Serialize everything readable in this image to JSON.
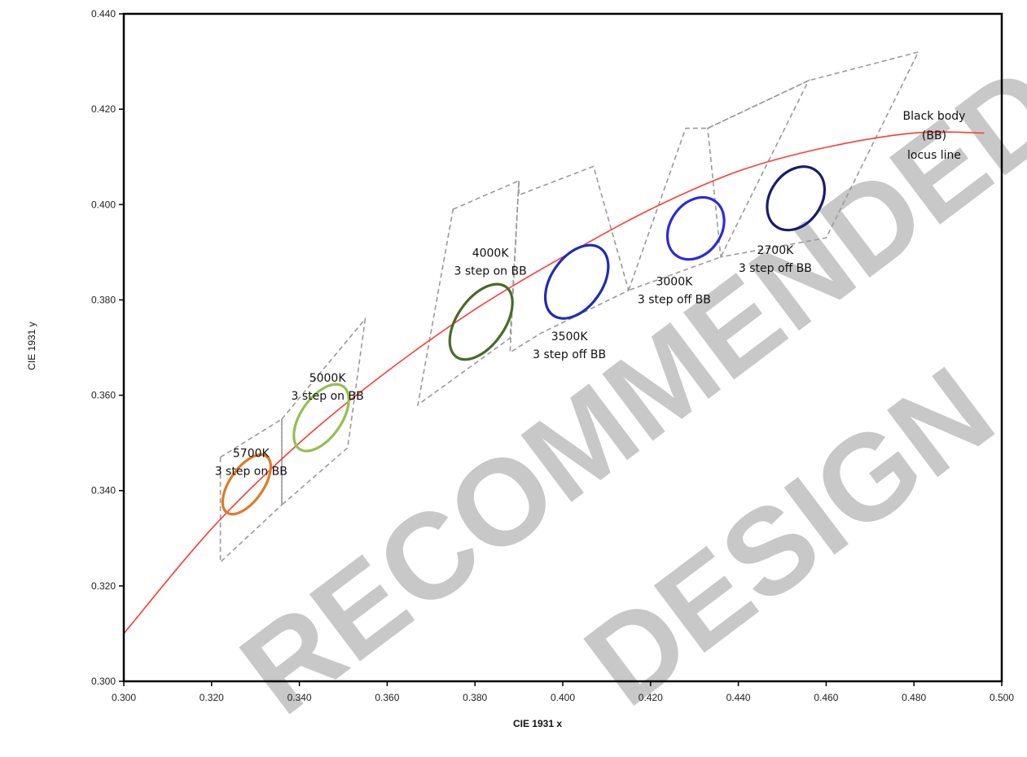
{
  "chart_data": {
    "type": "scatter",
    "title": "",
    "xlabel": "CIE 1931 x",
    "ylabel": "CIE 1931 y",
    "xlim": [
      0.3,
      0.5
    ],
    "ylim": [
      0.3,
      0.44
    ],
    "xticks": [
      "0.300",
      "0.320",
      "0.340",
      "0.360",
      "0.380",
      "0.400",
      "0.420",
      "0.440",
      "0.460",
      "0.480",
      "0.500"
    ],
    "yticks": [
      "0.300",
      "0.320",
      "0.340",
      "0.360",
      "0.380",
      "0.400",
      "0.420",
      "0.440"
    ],
    "grid": false,
    "locus": {
      "color": "#ff3b3b",
      "label": [
        "Black body",
        "(BB)",
        "locus line"
      ],
      "points": [
        [
          0.3,
          0.31
        ],
        [
          0.32,
          0.332
        ],
        [
          0.34,
          0.35
        ],
        [
          0.36,
          0.365
        ],
        [
          0.38,
          0.378
        ],
        [
          0.4,
          0.389
        ],
        [
          0.42,
          0.399
        ],
        [
          0.44,
          0.407
        ],
        [
          0.46,
          0.412
        ],
        [
          0.48,
          0.415
        ],
        [
          0.496,
          0.415
        ]
      ]
    },
    "quadrangles": [
      {
        "name": "5700K",
        "points": [
          [
            0.322,
            0.347
          ],
          [
            0.336,
            0.355
          ],
          [
            0.336,
            0.337
          ],
          [
            0.322,
            0.325
          ]
        ]
      },
      {
        "name": "5000K",
        "points": [
          [
            0.336,
            0.355
          ],
          [
            0.355,
            0.376
          ],
          [
            0.351,
            0.349
          ],
          [
            0.336,
            0.337
          ]
        ]
      },
      {
        "name": "4000K",
        "points": [
          [
            0.375,
            0.399
          ],
          [
            0.39,
            0.405
          ],
          [
            0.388,
            0.372
          ],
          [
            0.367,
            0.358
          ]
        ]
      },
      {
        "name": "3500K",
        "points": [
          [
            0.39,
            0.405
          ],
          [
            0.39,
            0.402
          ],
          [
            0.407,
            0.408
          ],
          [
            0.415,
            0.382
          ],
          [
            0.395,
            0.373
          ],
          [
            0.388,
            0.369
          ]
        ]
      },
      {
        "name": "3000K",
        "points": [
          [
            0.415,
            0.382
          ],
          [
            0.428,
            0.416
          ],
          [
            0.433,
            0.416
          ],
          [
            0.456,
            0.426
          ],
          [
            0.436,
            0.389
          ]
        ]
      },
      {
        "name": "2700K",
        "points": [
          [
            0.433,
            0.416
          ],
          [
            0.456,
            0.426
          ],
          [
            0.481,
            0.432
          ],
          [
            0.46,
            0.393
          ],
          [
            0.436,
            0.389
          ]
        ]
      }
    ],
    "ellipses": [
      {
        "name": "5700K",
        "color": "#e07a26",
        "center": [
          0.328,
          0.3413
        ],
        "rx": 0.0038,
        "ry": 0.0072,
        "label": [
          "5700K",
          "3 step on BB"
        ],
        "label_at": [
          0.329,
          0.347
        ]
      },
      {
        "name": "5000K",
        "color": "#92c050",
        "center": [
          0.345,
          0.3553
        ],
        "rx": 0.0046,
        "ry": 0.008,
        "label": [
          "5000K",
          "3 step on BB"
        ],
        "label_at": [
          0.3464,
          0.3628
        ]
      },
      {
        "name": "4000K",
        "color": "#4a6a2a",
        "center": [
          0.3814,
          0.3754
        ],
        "rx": 0.0054,
        "ry": 0.009,
        "label": [
          "4000K",
          "3 step on BB"
        ],
        "label_at": [
          0.3835,
          0.389
        ]
      },
      {
        "name": "3500K",
        "color": "#1e2cb4",
        "center": [
          0.4032,
          0.3838
        ],
        "rx": 0.0058,
        "ry": 0.0086,
        "label": [
          "3500K",
          "3 step off BB"
        ],
        "label_at": [
          0.4015,
          0.3715
        ]
      },
      {
        "name": "3000K",
        "color": "#2a2ae0",
        "center": [
          0.4303,
          0.395
        ],
        "rx": 0.0058,
        "ry": 0.007,
        "label": [
          "3000K",
          "3 step off BB"
        ],
        "label_at": [
          0.4254,
          0.3831
        ]
      },
      {
        "name": "2700K",
        "color": "#1c1a6a",
        "center": [
          0.4531,
          0.4013
        ],
        "rx": 0.0058,
        "ry": 0.0072,
        "label": [
          "2700K",
          "3 step off BB"
        ],
        "label_at": [
          0.4484,
          0.3896
        ]
      }
    ],
    "dash_color": "#9a9a9a",
    "watermark": [
      "RECOMMENDED",
      "DESIGN"
    ]
  }
}
